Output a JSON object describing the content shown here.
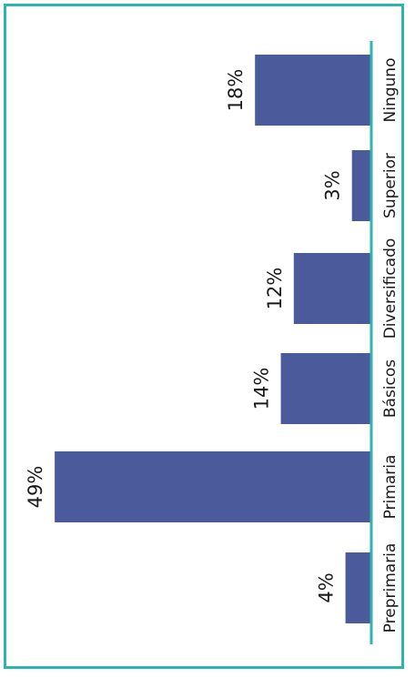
{
  "chart_data": {
    "type": "bar",
    "orientation": "rotated-vertical",
    "categories": [
      "Preprimaria",
      "Primaria",
      "Básicos",
      "Diversificado",
      "Superior",
      "Ninguno"
    ],
    "values": [
      4,
      49,
      14,
      12,
      3,
      18
    ],
    "value_labels": [
      "4%",
      "49%",
      "14%",
      "12%",
      "3%",
      "18%"
    ],
    "unit": "%",
    "ylim": [
      0,
      50
    ],
    "grid": false,
    "legend": "none",
    "title": "",
    "xlabel": "",
    "ylabel": ""
  },
  "colors": {
    "bar": "#4a5a9a",
    "frame": "#2eb3b2",
    "axis": "#2eb3b2",
    "text": "#1a1a1a"
  }
}
